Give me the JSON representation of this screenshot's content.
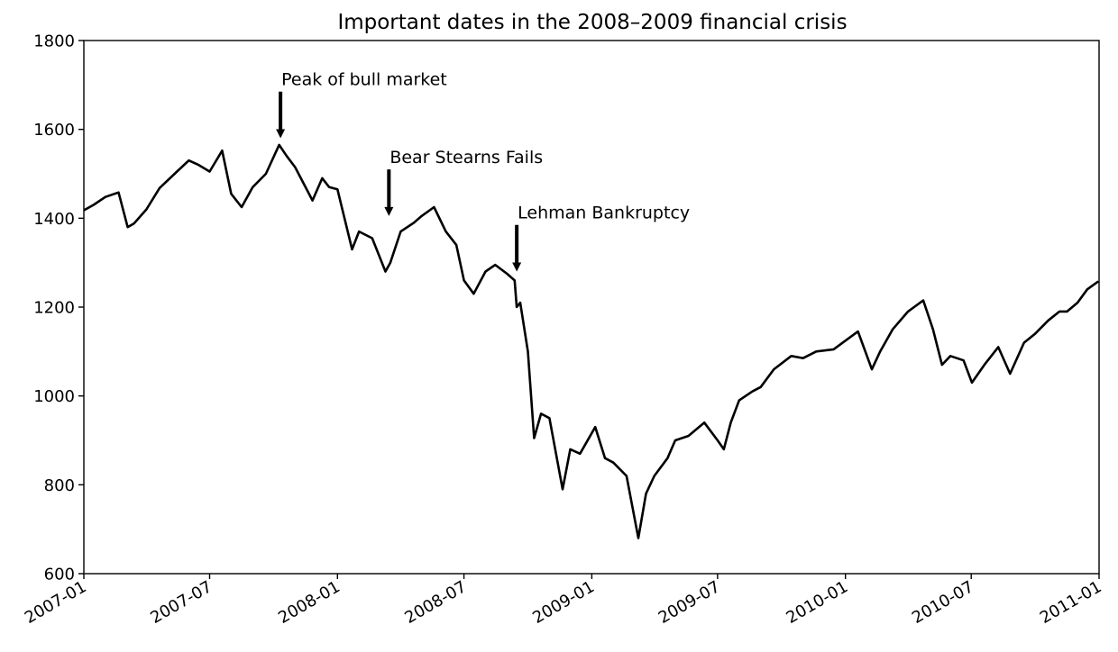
{
  "chart_data": {
    "type": "line",
    "title": "Important dates in the 2008–2009 financial crisis",
    "xlabel": "",
    "ylabel": "",
    "xlim": [
      "2007-01-01",
      "2011-01-01"
    ],
    "ylim": [
      600,
      1800
    ],
    "x_ticks": [
      "2007-01",
      "2007-07",
      "2008-01",
      "2008-07",
      "2009-01",
      "2009-07",
      "2010-01",
      "2010-07",
      "2011-01"
    ],
    "y_ticks": [
      600,
      800,
      1000,
      1200,
      1400,
      1600,
      1800
    ],
    "grid": false,
    "legend": null,
    "line_color": "#000000",
    "series": [
      {
        "x": [
          "2007-01-01",
          "2007-01-15",
          "2007-02-01",
          "2007-02-20",
          "2007-03-05",
          "2007-03-14",
          "2007-04-01",
          "2007-04-20",
          "2007-05-15",
          "2007-06-01",
          "2007-06-15",
          "2007-07-01",
          "2007-07-19",
          "2007-08-01",
          "2007-08-16",
          "2007-09-01",
          "2007-09-20",
          "2007-10-09",
          "2007-10-20",
          "2007-11-01",
          "2007-11-26",
          "2007-12-10",
          "2007-12-20",
          "2008-01-01",
          "2008-01-22",
          "2008-02-01",
          "2008-02-20",
          "2008-03-10",
          "2008-03-17",
          "2008-04-01",
          "2008-04-20",
          "2008-05-01",
          "2008-05-19",
          "2008-06-05",
          "2008-06-20",
          "2008-07-01",
          "2008-07-15",
          "2008-08-01",
          "2008-08-15",
          "2008-09-01",
          "2008-09-12",
          "2008-09-15",
          "2008-09-20",
          "2008-10-01",
          "2008-10-10",
          "2008-10-20",
          "2008-11-01",
          "2008-11-20",
          "2008-12-01",
          "2008-12-15",
          "2009-01-06",
          "2009-01-20",
          "2009-02-01",
          "2009-02-20",
          "2009-03-09",
          "2009-03-20",
          "2009-04-01",
          "2009-04-20",
          "2009-05-01",
          "2009-05-20",
          "2009-06-12",
          "2009-07-01",
          "2009-07-10",
          "2009-07-20",
          "2009-08-01",
          "2009-08-20",
          "2009-09-01",
          "2009-09-20",
          "2009-10-15",
          "2009-11-01",
          "2009-11-20",
          "2009-12-15",
          "2010-01-19",
          "2010-02-08",
          "2010-02-20",
          "2010-03-10",
          "2010-04-01",
          "2010-04-23",
          "2010-05-07",
          "2010-05-20",
          "2010-06-01",
          "2010-06-20",
          "2010-07-02",
          "2010-07-20",
          "2010-08-09",
          "2010-08-26",
          "2010-09-15",
          "2010-10-01",
          "2010-10-20",
          "2010-11-05",
          "2010-11-16",
          "2010-12-01",
          "2010-12-15",
          "2010-12-31"
        ],
        "y": [
          1418,
          1430,
          1448,
          1458,
          1380,
          1388,
          1420,
          1468,
          1505,
          1530,
          1520,
          1505,
          1552,
          1455,
          1425,
          1470,
          1500,
          1565,
          1540,
          1515,
          1440,
          1490,
          1470,
          1465,
          1330,
          1370,
          1355,
          1280,
          1300,
          1370,
          1390,
          1405,
          1425,
          1370,
          1340,
          1260,
          1230,
          1280,
          1295,
          1275,
          1260,
          1200,
          1210,
          1100,
          905,
          960,
          950,
          790,
          880,
          870,
          930,
          860,
          850,
          820,
          680,
          780,
          820,
          860,
          900,
          910,
          940,
          900,
          880,
          940,
          990,
          1010,
          1020,
          1060,
          1090,
          1085,
          1100,
          1105,
          1145,
          1060,
          1100,
          1150,
          1190,
          1215,
          1150,
          1070,
          1090,
          1080,
          1030,
          1070,
          1110,
          1050,
          1120,
          1140,
          1170,
          1190,
          1190,
          1210,
          1240,
          1258
        ]
      }
    ],
    "annotations": [
      {
        "label": "Peak of bull market",
        "x": "2007-10-11",
        "y": 1565
      },
      {
        "label": "Bear Stearns Fails",
        "x": "2008-03-15",
        "y": 1390
      },
      {
        "label": "Lehman Bankruptcy",
        "x": "2008-09-15",
        "y": 1265
      }
    ]
  }
}
